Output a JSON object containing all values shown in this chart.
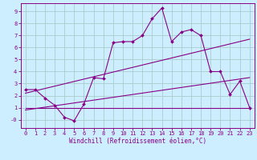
{
  "xlabel": "Windchill (Refroidissement éolien,°C)",
  "bg_color": "#cceeff",
  "grid_color": "#aacccc",
  "line_color": "#880088",
  "spine_color": "#880088",
  "xlim": [
    -0.5,
    23.5
  ],
  "ylim": [
    -0.7,
    9.7
  ],
  "xticks": [
    0,
    1,
    2,
    3,
    4,
    5,
    6,
    7,
    8,
    9,
    10,
    11,
    12,
    13,
    14,
    15,
    16,
    17,
    18,
    19,
    20,
    21,
    22,
    23
  ],
  "yticks": [
    0,
    1,
    2,
    3,
    4,
    5,
    6,
    7,
    8,
    9
  ],
  "ytick_labels": [
    "-0",
    "1",
    "2",
    "3",
    "4",
    "5",
    "6",
    "7",
    "8",
    "9"
  ],
  "series1_x": [
    0,
    1,
    2,
    3,
    4,
    5,
    6,
    7,
    8,
    9,
    10,
    11,
    12,
    13,
    14,
    15,
    16,
    17,
    18,
    19,
    20,
    21,
    22,
    23
  ],
  "series1_y": [
    2.5,
    2.5,
    1.8,
    1.2,
    0.2,
    -0.1,
    1.3,
    3.5,
    3.4,
    6.4,
    6.5,
    6.5,
    7.0,
    8.4,
    9.3,
    6.5,
    7.3,
    7.5,
    7.0,
    4.0,
    4.0,
    2.1,
    3.2,
    1.0
  ],
  "series2_x": [
    0,
    23
  ],
  "series2_y": [
    1.0,
    1.0
  ],
  "series3_x": [
    0,
    23
  ],
  "series3_y": [
    2.2,
    6.7
  ],
  "series4_x": [
    0,
    23
  ],
  "series4_y": [
    0.8,
    3.5
  ],
  "xlabel_fontsize": 5.5,
  "tick_fontsize": 5.0,
  "linewidth": 0.8,
  "markersize": 2.0
}
